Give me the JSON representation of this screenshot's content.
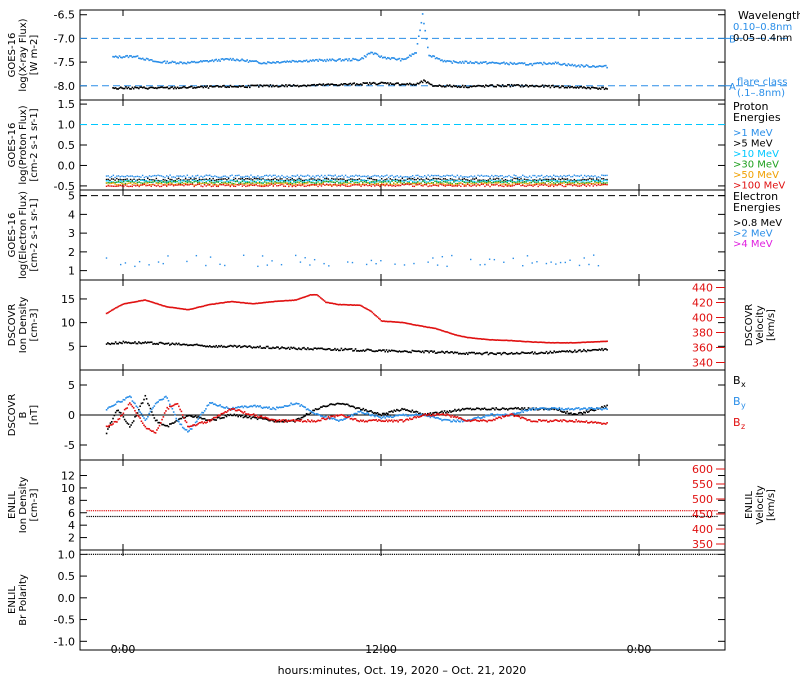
{
  "x_axis": {
    "label": "hours:minutes, Oct. 19, 2020 – Oct. 21, 2020",
    "range_hours": [
      -2,
      28
    ],
    "ticks": [
      {
        "hour": 0,
        "label": "0:00"
      },
      {
        "hour": 12,
        "label": "12:00"
      },
      {
        "hour": 24,
        "label": "0:00"
      }
    ],
    "data_end_hour": 22.5
  },
  "chart_data": [
    {
      "id": "xray",
      "type": "scatter",
      "ylabel": [
        "GOES-16",
        "log(X-ray Flux)",
        "[W m-2]"
      ],
      "ylim": [
        -8.3,
        -6.4
      ],
      "yticks": [
        {
          "v": -6.5,
          "t": "-6.5"
        },
        {
          "v": -7.0,
          "t": "-7.0"
        },
        {
          "v": -7.5,
          "t": "-7.5"
        },
        {
          "v": -8.0,
          "t": "-8.0"
        }
      ],
      "legend_title": "Wavelength",
      "series": [
        {
          "name": "0.10–0.8nm",
          "color": "#2a8ee8",
          "base": -7.58,
          "points": [
            [
              -0.5,
              -7.4
            ],
            [
              0.5,
              -7.38
            ],
            [
              1.5,
              -7.5
            ],
            [
              3,
              -7.52
            ],
            [
              5,
              -7.44
            ],
            [
              6.5,
              -7.52
            ],
            [
              8,
              -7.48
            ],
            [
              10,
              -7.46
            ],
            [
              11,
              -7.45
            ],
            [
              11.5,
              -7.3
            ],
            [
              12,
              -7.4
            ],
            [
              13,
              -7.46
            ],
            [
              13.6,
              -7.3
            ],
            [
              13.9,
              -6.5
            ],
            [
              14.2,
              -7.35
            ],
            [
              15,
              -7.5
            ],
            [
              17,
              -7.52
            ],
            [
              19,
              -7.55
            ],
            [
              20,
              -7.52
            ],
            [
              21,
              -7.58
            ],
            [
              22.5,
              -7.6
            ]
          ]
        },
        {
          "name": "0.05–0.4nm",
          "color": "#000000",
          "base": -8.05,
          "points": [
            [
              -0.5,
              -8.05
            ],
            [
              2,
              -8.05
            ],
            [
              5,
              -8.02
            ],
            [
              8,
              -8.0
            ],
            [
              10,
              -7.98
            ],
            [
              12,
              -7.95
            ],
            [
              13.6,
              -7.98
            ],
            [
              14,
              -7.9
            ],
            [
              14.3,
              -8.0
            ],
            [
              16,
              -8.02
            ],
            [
              18,
              -8.0
            ],
            [
              20,
              -8.02
            ],
            [
              22.5,
              -8.06
            ]
          ]
        }
      ],
      "hlines": [
        {
          "y": -7.0,
          "color": "#2a8ee8",
          "label": "B"
        },
        {
          "y": -8.0,
          "color": "#2a8ee8",
          "label": "A"
        }
      ],
      "flare_class_title": [
        "flare class",
        "(.1–.8nm)"
      ]
    },
    {
      "id": "proton",
      "type": "scatter",
      "ylabel": [
        "GOES-16",
        "log(Proton Flux)",
        "[cm-2 s-1 sr-1]"
      ],
      "ylim": [
        -0.6,
        1.6
      ],
      "yticks": [
        {
          "v": 1.5,
          "t": "1.5"
        },
        {
          "v": 1.0,
          "t": "1.0"
        },
        {
          "v": 0.5,
          "t": "0.5"
        },
        {
          "v": 0.0,
          "t": "0.0"
        },
        {
          "v": -0.5,
          "t": "-0.5"
        }
      ],
      "legend_title": [
        "Proton",
        "Energies"
      ],
      "series": [
        {
          "name": ">1 MeV",
          "color": "#2a8ee8",
          "base": -0.28
        },
        {
          "name": ">5 MeV",
          "color": "#000000",
          "base": -0.36
        },
        {
          "name": ">10 MeV",
          "color": "#00c8ff",
          "base": -0.4
        },
        {
          "name": ">30 MeV",
          "color": "#1ea01e",
          "base": -0.43
        },
        {
          "name": ">50 MeV",
          "color": "#f0a000",
          "base": -0.47
        },
        {
          "name": ">100 MeV",
          "color": "#e01010",
          "base": -0.5
        }
      ],
      "hlines": [
        {
          "y": 1.0,
          "color": "#00c8ff"
        }
      ]
    },
    {
      "id": "electron",
      "type": "scatter",
      "ylabel": [
        "GOES-16",
        "log(Electron Flux)",
        "[cm-2 s-1 sr-1]"
      ],
      "ylim": [
        0.5,
        5.3
      ],
      "yticks": [
        {
          "v": 5,
          "t": "5"
        },
        {
          "v": 4,
          "t": "4"
        },
        {
          "v": 3,
          "t": "3"
        },
        {
          "v": 2,
          "t": "2"
        },
        {
          "v": 1,
          "t": "1"
        }
      ],
      "legend_title": [
        "Electron",
        "Energies"
      ],
      "series": [
        {
          "name": ">0.8 MeV",
          "color": "#000000"
        },
        {
          "name": ">2 MeV",
          "color": "#2a8ee8",
          "base": 1.4
        },
        {
          "name": ">4 MeV",
          "color": "#e020e0"
        }
      ],
      "hlines": [
        {
          "y": 5.0,
          "color": "#000000"
        }
      ]
    },
    {
      "id": "dscovr-plasma",
      "type": "scatter",
      "ylabel": [
        "DSCOVR",
        "Ion Density",
        "[cm-3]"
      ],
      "ylim": [
        0,
        19
      ],
      "yticks": [
        {
          "v": 15,
          "t": "15"
        },
        {
          "v": 10,
          "t": "10"
        },
        {
          "v": 5,
          "t": "5"
        }
      ],
      "y2label": [
        "DSCOVR",
        "Velocity",
        "[km/s]"
      ],
      "y2lim": [
        330,
        450
      ],
      "y2ticks": [
        {
          "v": 440,
          "t": "440"
        },
        {
          "v": 420,
          "t": "420"
        },
        {
          "v": 400,
          "t": "400"
        },
        {
          "v": 380,
          "t": "380"
        },
        {
          "v": 360,
          "t": "360"
        },
        {
          "v": 340,
          "t": "340"
        }
      ],
      "series": [
        {
          "name": "Ion Density",
          "color": "#000000",
          "axis": "left",
          "points": [
            [
              -0.8,
              5.5
            ],
            [
              0,
              5.8
            ],
            [
              2,
              5.5
            ],
            [
              4,
              5.0
            ],
            [
              6,
              4.8
            ],
            [
              8,
              4.5
            ],
            [
              10,
              4.3
            ],
            [
              12,
              4.0
            ],
            [
              14,
              3.8
            ],
            [
              16,
              3.5
            ],
            [
              18,
              3.4
            ],
            [
              20,
              3.7
            ],
            [
              22.5,
              4.3
            ]
          ]
        },
        {
          "name": "Velocity",
          "color": "#e01010",
          "axis": "right",
          "points": [
            [
              -0.8,
              405
            ],
            [
              -0.4,
              412
            ],
            [
              0,
              418
            ],
            [
              1,
              423
            ],
            [
              2,
              414
            ],
            [
              3,
              410
            ],
            [
              4,
              417
            ],
            [
              5,
              421
            ],
            [
              6,
              418
            ],
            [
              7,
              421
            ],
            [
              8,
              423
            ],
            [
              8.7,
              430
            ],
            [
              9,
              430
            ],
            [
              9.4,
              420
            ],
            [
              10,
              417
            ],
            [
              11,
              416
            ],
            [
              11.5,
              408
            ],
            [
              12,
              395
            ],
            [
              13,
              393
            ],
            [
              13.5,
              390
            ],
            [
              14.5,
              385
            ],
            [
              15.5,
              376
            ],
            [
              16,
              373
            ],
            [
              17,
              370
            ],
            [
              18,
              369
            ],
            [
              19,
              367
            ],
            [
              20,
              366
            ],
            [
              21,
              366
            ],
            [
              22.5,
              368
            ]
          ]
        }
      ]
    },
    {
      "id": "dscovr-mag",
      "type": "scatter",
      "ylabel": [
        "DSCOVR",
        "B",
        "[nT]"
      ],
      "ylim": [
        -7.5,
        7.5
      ],
      "yticks": [
        {
          "v": 5,
          "t": "5"
        },
        {
          "v": 0,
          "t": "0"
        },
        {
          "v": -5,
          "t": "-5"
        }
      ],
      "zero_line": true,
      "series": [
        {
          "name": "Bx",
          "color": "#000000",
          "label_main": "B",
          "label_sub": "x",
          "points": [
            [
              -0.8,
              -3
            ],
            [
              -0.3,
              1
            ],
            [
              0.3,
              -2
            ],
            [
              1,
              3
            ],
            [
              1.5,
              -1
            ],
            [
              2,
              -2
            ],
            [
              3,
              0
            ],
            [
              4,
              -1
            ],
            [
              5,
              0
            ],
            [
              7,
              -1
            ],
            [
              8,
              -1
            ],
            [
              9,
              1
            ],
            [
              10,
              2
            ],
            [
              11,
              1
            ],
            [
              12,
              0
            ],
            [
              13,
              1
            ],
            [
              14,
              0
            ],
            [
              16,
              1
            ],
            [
              18,
              1
            ],
            [
              20,
              1
            ],
            [
              21,
              0
            ],
            [
              22.5,
              1.5
            ]
          ]
        },
        {
          "name": "By",
          "color": "#2a8ee8",
          "label_main": "B",
          "label_sub": "y",
          "points": [
            [
              -0.8,
              1
            ],
            [
              -0.3,
              2
            ],
            [
              0.3,
              3
            ],
            [
              1,
              -1
            ],
            [
              1.5,
              2
            ],
            [
              2,
              3
            ],
            [
              2.5,
              -1
            ],
            [
              3,
              -3
            ],
            [
              4,
              2
            ],
            [
              5,
              1
            ],
            [
              6,
              1.5
            ],
            [
              7,
              1
            ],
            [
              8,
              2
            ],
            [
              9,
              0
            ],
            [
              10,
              -1
            ],
            [
              11,
              0.5
            ],
            [
              12,
              -0.5
            ],
            [
              13,
              0
            ],
            [
              14,
              0
            ],
            [
              15,
              -1
            ],
            [
              16,
              -1
            ],
            [
              17,
              0
            ],
            [
              18,
              0
            ],
            [
              19,
              1
            ],
            [
              20,
              1
            ],
            [
              21,
              1
            ],
            [
              22.5,
              1
            ]
          ]
        },
        {
          "name": "Bz",
          "color": "#e01010",
          "label_main": "B",
          "label_sub": "z",
          "points": [
            [
              -0.8,
              -2
            ],
            [
              -0.3,
              -1
            ],
            [
              0.3,
              2
            ],
            [
              1,
              -2
            ],
            [
              1.5,
              -3
            ],
            [
              2,
              1
            ],
            [
              2.5,
              2
            ],
            [
              3,
              -2
            ],
            [
              4,
              -1
            ],
            [
              5,
              1
            ],
            [
              6,
              0
            ],
            [
              7,
              -1
            ],
            [
              8,
              -1
            ],
            [
              9,
              -1
            ],
            [
              10,
              0
            ],
            [
              11,
              -1
            ],
            [
              12,
              -1
            ],
            [
              13,
              -1
            ],
            [
              14,
              0
            ],
            [
              15,
              0
            ],
            [
              16,
              -1
            ],
            [
              17,
              -1
            ],
            [
              18,
              0
            ],
            [
              19,
              -1
            ],
            [
              20,
              -1
            ],
            [
              21,
              -1
            ],
            [
              22.5,
              -1.5
            ]
          ]
        }
      ]
    },
    {
      "id": "enlil-plasma",
      "type": "line",
      "ylabel": [
        "ENLIL",
        "Ion Density",
        "[cm-3]"
      ],
      "ylim": [
        0,
        14.5
      ],
      "yticks": [
        {
          "v": 12,
          "t": "12"
        },
        {
          "v": 10,
          "t": "10"
        },
        {
          "v": 8,
          "t": "8"
        },
        {
          "v": 6,
          "t": "6"
        },
        {
          "v": 4,
          "t": "4"
        },
        {
          "v": 2,
          "t": "2"
        }
      ],
      "y2label": [
        "ENLIL",
        "Velocity",
        "[km/s]"
      ],
      "y2lim": [
        330,
        630
      ],
      "y2ticks": [
        {
          "v": 600,
          "t": "600"
        },
        {
          "v": 550,
          "t": "550"
        },
        {
          "v": 500,
          "t": "500"
        },
        {
          "v": 450,
          "t": "450"
        },
        {
          "v": 400,
          "t": "400"
        },
        {
          "v": 350,
          "t": "350"
        }
      ],
      "series": [
        {
          "name": "Velocity",
          "color": "#e01010",
          "axis": "right",
          "value": 461
        },
        {
          "name": "Ion Density",
          "color": "#000000",
          "axis": "left",
          "value": 5.4
        }
      ]
    },
    {
      "id": "enlil-polarity",
      "type": "line",
      "ylabel": [
        "ENLIL",
        "Br Polarity"
      ],
      "ylim": [
        -1.2,
        1.1
      ],
      "yticks": [
        {
          "v": 1.0,
          "t": "1.0"
        },
        {
          "v": 0.5,
          "t": "0.5"
        },
        {
          "v": 0.0,
          "t": "0.0"
        },
        {
          "v": -0.5,
          "t": "-0.5"
        },
        {
          "v": -1.0,
          "t": "-1.0"
        }
      ],
      "series": [
        {
          "name": "Br Polarity",
          "color": "#000000",
          "value": 1.0
        }
      ]
    }
  ]
}
